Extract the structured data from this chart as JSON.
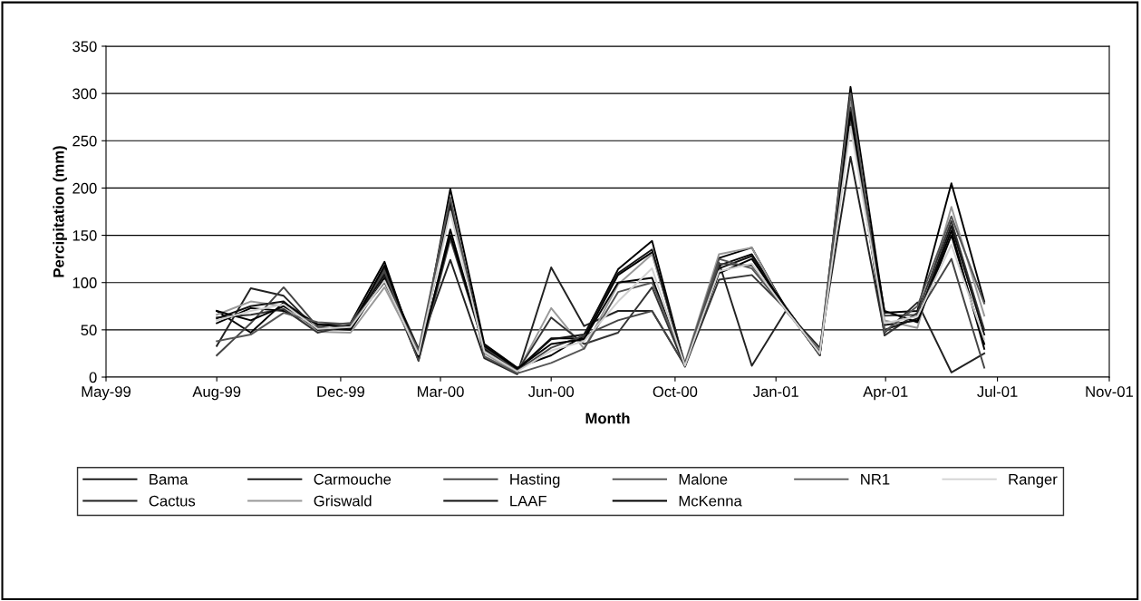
{
  "chart_data": {
    "type": "line",
    "xlabel": "Month",
    "ylabel": "Percipitation (mm)",
    "x": [
      "1999-08-10",
      "1999-09-10",
      "1999-10-10",
      "1999-11-10",
      "1999-12-10",
      "2000-01-10",
      "2000-02-10",
      "2000-03-10",
      "2000-04-10",
      "2000-05-10",
      "2000-06-10",
      "2000-07-10",
      "2000-08-10",
      "2000-09-10",
      "2000-10-10",
      "2000-11-10",
      "2000-12-10",
      "2001-01-10",
      "2001-02-10",
      "2001-03-10",
      "2001-04-10",
      "2001-05-10",
      "2001-06-10",
      "2001-07-10"
    ],
    "xlim": [
      "1999-05-01",
      "2001-11-01"
    ],
    "xticks": [
      {
        "value": "1999-05-01",
        "label": "May-99"
      },
      {
        "value": "1999-08-10",
        "label": "Aug-99"
      },
      {
        "value": "1999-12-01",
        "label": "Dec-99"
      },
      {
        "value": "2000-03-01",
        "label": "Mar-00"
      },
      {
        "value": "2000-06-10",
        "label": "Jun-00"
      },
      {
        "value": "2000-10-01",
        "label": "Oct-00"
      },
      {
        "value": "2001-01-01",
        "label": "Jan-01"
      },
      {
        "value": "2001-04-11",
        "label": "Apr-01"
      },
      {
        "value": "2001-07-22",
        "label": "Jul-01"
      },
      {
        "value": "2001-11-01",
        "label": "Nov-01"
      }
    ],
    "ylim": [
      0,
      350
    ],
    "yticks": [
      0,
      50,
      100,
      150,
      200,
      250,
      300,
      350
    ],
    "grid": "y",
    "legend": "bottom",
    "marker": "none",
    "line_style": "solid",
    "series": [
      {
        "name": "Bama",
        "color": "#000000",
        "values": [
          70,
          47,
          79,
          55,
          57,
          122,
          18,
          199,
          35,
          10,
          23,
          44,
          114,
          144,
          12,
          126,
          137,
          72,
          23,
          307,
          68,
          70,
          205,
          80
        ]
      },
      {
        "name": "Cactus",
        "color": "#222222",
        "values": [
          33,
          94,
          86,
          50,
          52,
          110,
          30,
          124,
          20,
          3,
          116,
          54,
          70,
          70,
          12,
          121,
          12,
          70,
          31,
          233,
          47,
          79,
          5,
          25
        ]
      },
      {
        "name": "Carmouche",
        "color": "#000000",
        "values": [
          57,
          73,
          70,
          52,
          50,
          105,
          18,
          156,
          30,
          8,
          41,
          41,
          108,
          132,
          12,
          118,
          130,
          74,
          25,
          274,
          55,
          60,
          155,
          30
        ]
      },
      {
        "name": "Griswald",
        "color": "#999999",
        "values": [
          66,
          80,
          75,
          48,
          47,
          95,
          25,
          188,
          25,
          5,
          73,
          30,
          98,
          130,
          15,
          130,
          137,
          70,
          28,
          290,
          60,
          52,
          180,
          65
        ]
      },
      {
        "name": "Hasting",
        "color": "#333333",
        "values": [
          63,
          66,
          72,
          47,
          55,
          115,
          20,
          181,
          28,
          6,
          63,
          35,
          47,
          95,
          11,
          103,
          108,
          72,
          24,
          285,
          44,
          68,
          165,
          50
        ]
      },
      {
        "name": "LAAF",
        "color": "#111111",
        "values": [
          62,
          75,
          80,
          50,
          55,
          108,
          20,
          185,
          30,
          8,
          40,
          45,
          110,
          135,
          13,
          115,
          128,
          73,
          24,
          278,
          50,
          62,
          160,
          45
        ]
      },
      {
        "name": "Malone",
        "color": "#444444",
        "values": [
          23,
          57,
          95,
          53,
          57,
          112,
          17,
          146,
          32,
          7,
          31,
          44,
          60,
          70,
          12,
          120,
          118,
          74,
          23,
          270,
          65,
          66,
          125,
          10
        ]
      },
      {
        "name": "McKenna",
        "color": "#000000",
        "values": [
          70,
          60,
          75,
          56,
          52,
          118,
          22,
          150,
          33,
          9,
          35,
          40,
          100,
          105,
          12,
          110,
          125,
          73,
          26,
          280,
          70,
          58,
          150,
          35
        ]
      },
      {
        "name": "NR1",
        "color": "#555555",
        "values": [
          38,
          45,
          68,
          58,
          56,
          100,
          28,
          190,
          22,
          4,
          15,
          30,
          90,
          100,
          14,
          125,
          115,
          71,
          27,
          300,
          48,
          75,
          170,
          78
        ]
      },
      {
        "name": "Ranger",
        "color": "#d0d0d0",
        "values": [
          60,
          70,
          77,
          51,
          53,
          102,
          24,
          175,
          27,
          6,
          28,
          38,
          80,
          115,
          12,
          112,
          120,
          71,
          25,
          265,
          57,
          64,
          140,
          40
        ]
      }
    ]
  }
}
